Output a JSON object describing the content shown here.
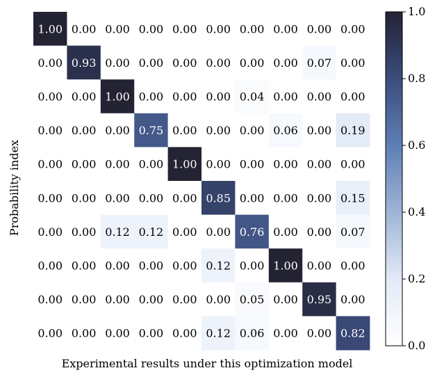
{
  "chart_data": {
    "type": "heatmap",
    "xlabel": "Experimental results under this optimization model",
    "ylabel": "Probability index",
    "title": "",
    "matrix": [
      [
        "1.00",
        "0.00",
        "0.00",
        "0.00",
        "0.00",
        "0.00",
        "0.00",
        "0.00",
        "0.00",
        "0.00"
      ],
      [
        "0.00",
        "0.93",
        "0.00",
        "0.00",
        "0.00",
        "0.00",
        "0.00",
        "0.00",
        "0.07",
        "0.00"
      ],
      [
        "0.00",
        "0.00",
        "1.00",
        "0.00",
        "0.00",
        "0.00",
        "0.04",
        "0.00",
        "0.00",
        "0.00"
      ],
      [
        "0.00",
        "0.00",
        "0.00",
        "0.75",
        "0.00",
        "0.00",
        "0.00",
        "0.06",
        "0.00",
        "0.19"
      ],
      [
        "0.00",
        "0.00",
        "0.00",
        "0.00",
        "1.00",
        "0.00",
        "0.00",
        "0.00",
        "0.00",
        "0.00"
      ],
      [
        "0.00",
        "0.00",
        "0.00",
        "0.00",
        "0.00",
        "0.85",
        "0.00",
        "0.00",
        "0.00",
        "0.15"
      ],
      [
        "0.00",
        "0.00",
        "0.12",
        "0.12",
        "0.00",
        "0.00",
        "0.76",
        "0.00",
        "0.00",
        "0.07"
      ],
      [
        "0.00",
        "0.00",
        "0.00",
        "0.00",
        "0.00",
        "0.12",
        "0.00",
        "1.00",
        "0.00",
        "0.00"
      ],
      [
        "0.00",
        "0.00",
        "0.00",
        "0.00",
        "0.00",
        "0.00",
        "0.05",
        "0.00",
        "0.95",
        "0.00"
      ],
      [
        "0.00",
        "0.00",
        "0.00",
        "0.00",
        "0.00",
        "0.12",
        "0.06",
        "0.00",
        "0.00",
        "0.82"
      ]
    ],
    "colorbar": {
      "range": [
        0.0,
        1.0
      ],
      "ticks": [
        0.0,
        0.2,
        0.4,
        0.6,
        0.8,
        1.0
      ],
      "tick_labels": [
        "0.0",
        "0.2",
        "0.4",
        "0.6",
        "0.8",
        "1.0"
      ],
      "colormap": [
        "#ffffff",
        "#e2eaf7",
        "#9fb4d6",
        "#5e7fb4",
        "#3b4c7c",
        "#232333"
      ]
    },
    "grid": false,
    "legend": "colorbar-right"
  }
}
